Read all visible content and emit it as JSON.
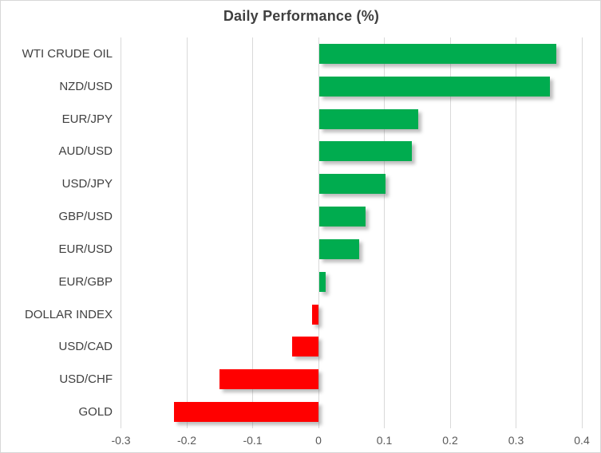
{
  "chart_data": {
    "type": "bar",
    "orientation": "horizontal",
    "title": "Daily Performance (%)",
    "categories": [
      "WTI CRUDE OIL",
      "NZD/USD",
      "EUR/JPY",
      "AUD/USD",
      "USD/JPY",
      "GBP/USD",
      "EUR/USD",
      "EUR/GBP",
      "DOLLAR INDEX",
      "USD/CAD",
      "USD/CHF",
      "GOLD"
    ],
    "values": [
      0.36,
      0.35,
      0.15,
      0.14,
      0.1,
      0.07,
      0.06,
      0.01,
      -0.01,
      -0.04,
      -0.15,
      -0.22
    ],
    "xlabel": "",
    "ylabel": "",
    "xlim": [
      -0.3,
      0.4
    ],
    "x_ticks": [
      -0.3,
      -0.2,
      -0.1,
      0,
      0.1,
      0.2,
      0.3,
      0.4
    ],
    "x_tick_labels": [
      "-0.3",
      "-0.2",
      "-0.1",
      "0",
      "0.1",
      "0.2",
      "0.3",
      "0.4"
    ],
    "grid": "vertical-only",
    "legend": "none",
    "colors": {
      "positive_bar": "#00AC4F",
      "negative_bar": "#FF0000",
      "gridline": "#D9D9D9",
      "title_text": "#3F3F3F",
      "category_text": "#404040",
      "tick_text": "#595959"
    }
  }
}
